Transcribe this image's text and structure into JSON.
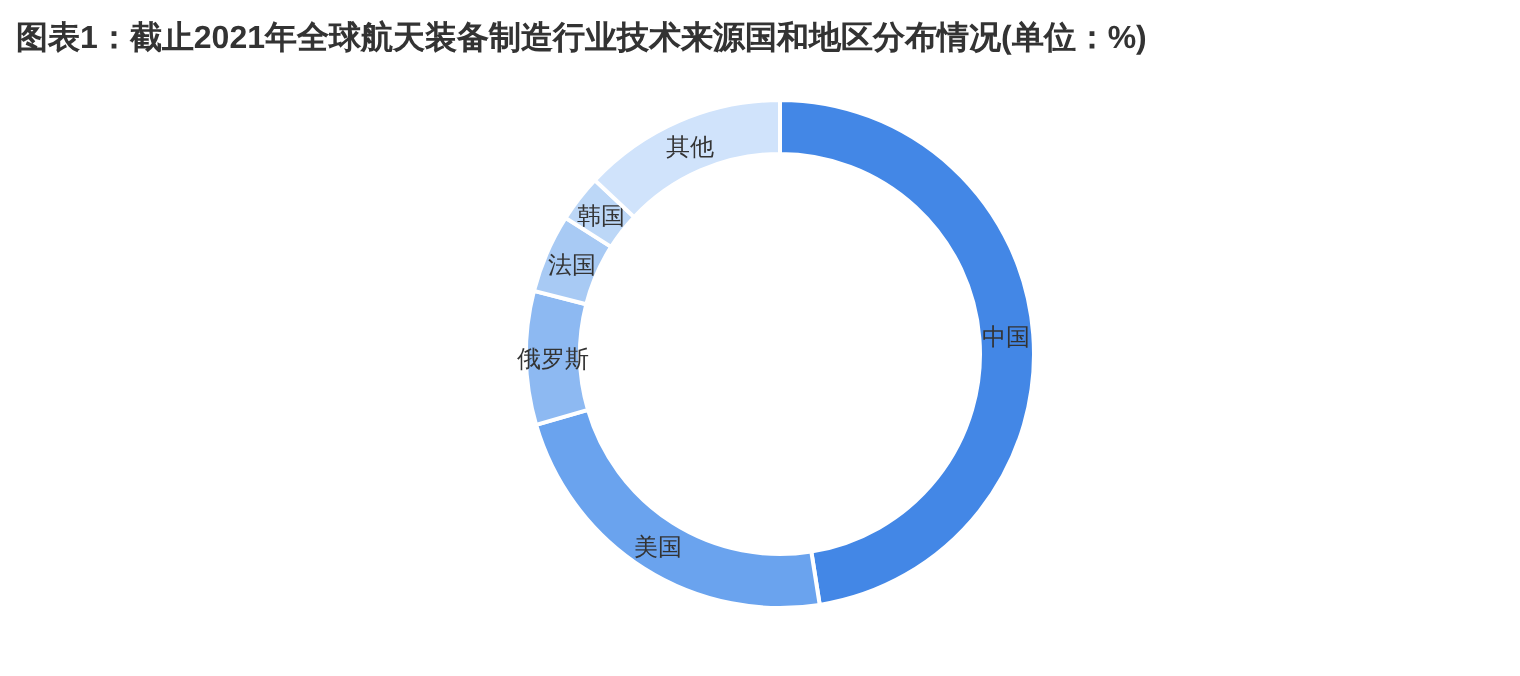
{
  "chart_data": {
    "type": "donut",
    "title": "图表1：截止2021年全球航天装备制造行业技术来源国和地区分布情况(单位：%)",
    "categories": [
      "中国",
      "美国",
      "俄罗斯",
      "法国",
      "韩国",
      "其他"
    ],
    "values": [
      47.5,
      23,
      8.5,
      5,
      3,
      13
    ],
    "colors": [
      "#4387e6",
      "#6aa3ee",
      "#8db9f2",
      "#a8caf4",
      "#bcd7f7",
      "#d0e3fb"
    ],
    "legend": false
  }
}
